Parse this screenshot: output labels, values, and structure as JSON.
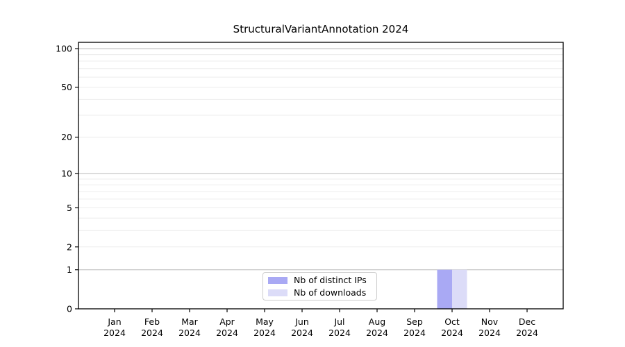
{
  "chart_data": {
    "type": "bar",
    "title": "StructuralVariantAnnotation 2024",
    "categories": [
      "Jan",
      "Feb",
      "Mar",
      "Apr",
      "May",
      "Jun",
      "Jul",
      "Aug",
      "Sep",
      "Oct",
      "Nov",
      "Dec"
    ],
    "category_sublabel": "2024",
    "series": [
      {
        "name": "Nb of distinct IPs",
        "color": "#a9a9f4",
        "values": [
          0,
          0,
          0,
          0,
          0,
          0,
          0,
          0,
          0,
          1,
          0,
          0
        ]
      },
      {
        "name": "Nb of downloads",
        "color": "#dcdcf8",
        "values": [
          0,
          0,
          0,
          0,
          0,
          0,
          0,
          0,
          0,
          1,
          0,
          0
        ]
      }
    ],
    "yscale": "log1p",
    "ylim": [
      0,
      112
    ],
    "yticks": [
      0,
      1,
      2,
      5,
      10,
      20,
      50,
      100
    ],
    "grid": {
      "major": [
        1,
        10,
        100
      ],
      "minor": [
        2,
        3,
        4,
        5,
        6,
        7,
        8,
        9,
        20,
        30,
        40,
        50,
        60,
        70,
        80,
        90
      ]
    },
    "legend_position": "lower center",
    "legend": [
      "Nb of distinct IPs",
      "Nb of downloads"
    ]
  }
}
